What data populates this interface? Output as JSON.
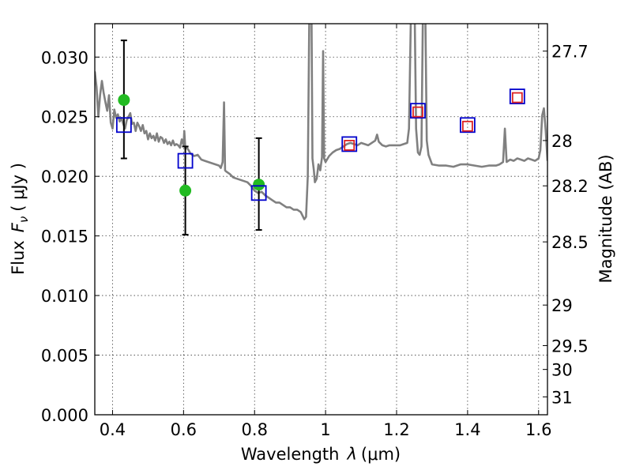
{
  "chart_data": {
    "type": "scatter",
    "title": "",
    "xlabel": "Wavelength",
    "xlabel_symbol": "λ",
    "xlabel_unit": "(μm)",
    "ylabel": "Flux",
    "ylabel_symbol": "F",
    "ylabel_subscript": "ν",
    "ylabel_unit": "( μJy )",
    "y2label": "Magnitude (AB)",
    "xlim": [
      0.35,
      1.625
    ],
    "ylim": [
      0.0,
      0.0328
    ],
    "grid": true,
    "x_ticks": [
      {
        "value": 0.4,
        "label": "0.4"
      },
      {
        "value": 0.6,
        "label": "0.6"
      },
      {
        "value": 0.8,
        "label": "0.8"
      },
      {
        "value": 1.0,
        "label": "1"
      },
      {
        "value": 1.2,
        "label": "1.2"
      },
      {
        "value": 1.4,
        "label": "1.4"
      },
      {
        "value": 1.6,
        "label": "1.6"
      }
    ],
    "y_ticks": [
      {
        "value": 0.0,
        "label": "0.000"
      },
      {
        "value": 0.005,
        "label": "0.005"
      },
      {
        "value": 0.01,
        "label": "0.010"
      },
      {
        "value": 0.015,
        "label": "0.015"
      },
      {
        "value": 0.02,
        "label": "0.020"
      },
      {
        "value": 0.025,
        "label": "0.025"
      },
      {
        "value": 0.03,
        "label": "0.030"
      }
    ],
    "y2_ticks": [
      {
        "flux": 0.0305,
        "label": "27.7"
      },
      {
        "flux": 0.023,
        "label": "28"
      },
      {
        "flux": 0.0192,
        "label": "28.2"
      },
      {
        "flux": 0.0145,
        "label": "28.5"
      },
      {
        "flux": 0.0092,
        "label": "29"
      },
      {
        "flux": 0.0058,
        "label": "29.5"
      },
      {
        "flux": 0.0038,
        "label": "30"
      },
      {
        "flux": 0.0015,
        "label": "31"
      }
    ],
    "series": [
      {
        "kind": "line",
        "color": "#808080",
        "points": [
          [
            0.35,
            0.0288
          ],
          [
            0.355,
            0.0275
          ],
          [
            0.36,
            0.025
          ],
          [
            0.365,
            0.0268
          ],
          [
            0.37,
            0.028
          ],
          [
            0.375,
            0.027
          ],
          [
            0.38,
            0.0262
          ],
          [
            0.385,
            0.0255
          ],
          [
            0.39,
            0.0268
          ],
          [
            0.395,
            0.0245
          ],
          [
            0.4,
            0.024
          ],
          [
            0.405,
            0.0256
          ],
          [
            0.41,
            0.0249
          ],
          [
            0.415,
            0.0252
          ],
          [
            0.42,
            0.0246
          ],
          [
            0.425,
            0.0249
          ],
          [
            0.43,
            0.0244
          ],
          [
            0.435,
            0.024
          ],
          [
            0.44,
            0.0247
          ],
          [
            0.445,
            0.025
          ],
          [
            0.45,
            0.0253
          ],
          [
            0.455,
            0.0244
          ],
          [
            0.46,
            0.0245
          ],
          [
            0.465,
            0.0238
          ],
          [
            0.47,
            0.0245
          ],
          [
            0.475,
            0.0242
          ],
          [
            0.48,
            0.0238
          ],
          [
            0.485,
            0.0243
          ],
          [
            0.49,
            0.0236
          ],
          [
            0.495,
            0.0238
          ],
          [
            0.5,
            0.0231
          ],
          [
            0.505,
            0.0236
          ],
          [
            0.51,
            0.0232
          ],
          [
            0.515,
            0.0234
          ],
          [
            0.52,
            0.023
          ],
          [
            0.525,
            0.0236
          ],
          [
            0.53,
            0.0229
          ],
          [
            0.535,
            0.0233
          ],
          [
            0.54,
            0.0232
          ],
          [
            0.545,
            0.0228
          ],
          [
            0.55,
            0.0231
          ],
          [
            0.555,
            0.0227
          ],
          [
            0.56,
            0.0229
          ],
          [
            0.565,
            0.0226
          ],
          [
            0.57,
            0.023
          ],
          [
            0.575,
            0.0226
          ],
          [
            0.58,
            0.0227
          ],
          [
            0.585,
            0.0226
          ],
          [
            0.59,
            0.0224
          ],
          [
            0.595,
            0.0231
          ],
          [
            0.6,
            0.0226
          ],
          [
            0.602,
            0.0238
          ],
          [
            0.605,
            0.0223
          ],
          [
            0.61,
            0.0224
          ],
          [
            0.62,
            0.0219
          ],
          [
            0.63,
            0.0217
          ],
          [
            0.64,
            0.0218
          ],
          [
            0.65,
            0.0214
          ],
          [
            0.66,
            0.0213
          ],
          [
            0.67,
            0.0212
          ],
          [
            0.68,
            0.0211
          ],
          [
            0.69,
            0.021
          ],
          [
            0.7,
            0.0209
          ],
          [
            0.705,
            0.0207
          ],
          [
            0.71,
            0.0212
          ],
          [
            0.714,
            0.0262
          ],
          [
            0.717,
            0.0205
          ],
          [
            0.72,
            0.0204
          ],
          [
            0.73,
            0.0202
          ],
          [
            0.74,
            0.0199
          ],
          [
            0.75,
            0.0198
          ],
          [
            0.76,
            0.0197
          ],
          [
            0.77,
            0.0196
          ],
          [
            0.78,
            0.0195
          ],
          [
            0.79,
            0.0192
          ],
          [
            0.8,
            0.0188
          ],
          [
            0.81,
            0.0186
          ],
          [
            0.82,
            0.0187
          ],
          [
            0.83,
            0.0184
          ],
          [
            0.84,
            0.0182
          ],
          [
            0.85,
            0.018
          ],
          [
            0.86,
            0.0178
          ],
          [
            0.87,
            0.0178
          ],
          [
            0.88,
            0.0176
          ],
          [
            0.89,
            0.0174
          ],
          [
            0.9,
            0.0174
          ],
          [
            0.91,
            0.0172
          ],
          [
            0.92,
            0.0172
          ],
          [
            0.93,
            0.017
          ],
          [
            0.94,
            0.0164
          ],
          [
            0.945,
            0.0166
          ],
          [
            0.95,
            0.02
          ],
          [
            0.955,
            0.036
          ],
          [
            0.96,
            0.036
          ],
          [
            0.963,
            0.0215
          ],
          [
            0.967,
            0.0205
          ],
          [
            0.97,
            0.0195
          ],
          [
            0.975,
            0.0198
          ],
          [
            0.98,
            0.021
          ],
          [
            0.985,
            0.0205
          ],
          [
            0.99,
            0.0216
          ],
          [
            0.993,
            0.0305
          ],
          [
            0.996,
            0.0215
          ],
          [
            1.0,
            0.0212
          ],
          [
            1.01,
            0.0217
          ],
          [
            1.02,
            0.022
          ],
          [
            1.03,
            0.0222
          ],
          [
            1.04,
            0.0223
          ],
          [
            1.05,
            0.0225
          ],
          [
            1.06,
            0.0227
          ],
          [
            1.07,
            0.0228
          ],
          [
            1.08,
            0.0227
          ],
          [
            1.09,
            0.0226
          ],
          [
            1.1,
            0.0228
          ],
          [
            1.11,
            0.0227
          ],
          [
            1.12,
            0.0226
          ],
          [
            1.13,
            0.0228
          ],
          [
            1.14,
            0.023
          ],
          [
            1.145,
            0.0235
          ],
          [
            1.15,
            0.0229
          ],
          [
            1.16,
            0.0226
          ],
          [
            1.17,
            0.0225
          ],
          [
            1.18,
            0.0226
          ],
          [
            1.19,
            0.0226
          ],
          [
            1.2,
            0.0226
          ],
          [
            1.21,
            0.0226
          ],
          [
            1.22,
            0.0227
          ],
          [
            1.23,
            0.0228
          ],
          [
            1.235,
            0.024
          ],
          [
            1.24,
            0.033
          ],
          [
            1.245,
            0.036
          ],
          [
            1.25,
            0.036
          ],
          [
            1.255,
            0.024
          ],
          [
            1.26,
            0.022
          ],
          [
            1.265,
            0.0218
          ],
          [
            1.27,
            0.0225
          ],
          [
            1.275,
            0.036
          ],
          [
            1.28,
            0.036
          ],
          [
            1.285,
            0.023
          ],
          [
            1.29,
            0.0218
          ],
          [
            1.3,
            0.021
          ],
          [
            1.32,
            0.0209
          ],
          [
            1.34,
            0.0209
          ],
          [
            1.36,
            0.0208
          ],
          [
            1.38,
            0.021
          ],
          [
            1.4,
            0.021
          ],
          [
            1.42,
            0.0209
          ],
          [
            1.44,
            0.0208
          ],
          [
            1.46,
            0.0209
          ],
          [
            1.48,
            0.0209
          ],
          [
            1.49,
            0.021
          ],
          [
            1.5,
            0.0212
          ],
          [
            1.505,
            0.024
          ],
          [
            1.51,
            0.0212
          ],
          [
            1.52,
            0.0214
          ],
          [
            1.53,
            0.0213
          ],
          [
            1.54,
            0.0215
          ],
          [
            1.55,
            0.0214
          ],
          [
            1.56,
            0.0213
          ],
          [
            1.57,
            0.0215
          ],
          [
            1.58,
            0.0214
          ],
          [
            1.59,
            0.0213
          ],
          [
            1.6,
            0.0215
          ],
          [
            1.605,
            0.0222
          ],
          [
            1.61,
            0.0251
          ],
          [
            1.615,
            0.0257
          ],
          [
            1.62,
            0.0238
          ],
          [
            1.625,
            0.0213
          ]
        ]
      },
      {
        "kind": "errorbar",
        "color": "#000000",
        "points": [
          {
            "x": 0.432,
            "y": 0.0264,
            "lo": 0.0215,
            "hi": 0.0314
          },
          {
            "x": 0.605,
            "y": 0.0188,
            "lo": 0.0151,
            "hi": 0.0225
          },
          {
            "x": 0.812,
            "y": 0.0193,
            "lo": 0.0155,
            "hi": 0.0232
          }
        ]
      },
      {
        "kind": "circles",
        "color": "#22bb22",
        "points": [
          [
            0.432,
            0.0264
          ],
          [
            0.605,
            0.0188
          ],
          [
            0.812,
            0.0193
          ]
        ]
      },
      {
        "kind": "squares",
        "color": "#0000cc",
        "size": "large",
        "points": [
          [
            0.432,
            0.0243
          ],
          [
            0.605,
            0.0213
          ],
          [
            0.812,
            0.0186
          ],
          [
            1.067,
            0.0227
          ],
          [
            1.26,
            0.0255
          ],
          [
            1.4,
            0.0243
          ],
          [
            1.54,
            0.0267
          ]
        ]
      },
      {
        "kind": "squares",
        "color": "#dd2222",
        "size": "small",
        "points": [
          [
            1.067,
            0.0226
          ],
          [
            1.26,
            0.0254
          ],
          [
            1.4,
            0.0242
          ],
          [
            1.54,
            0.0266
          ]
        ]
      }
    ]
  }
}
